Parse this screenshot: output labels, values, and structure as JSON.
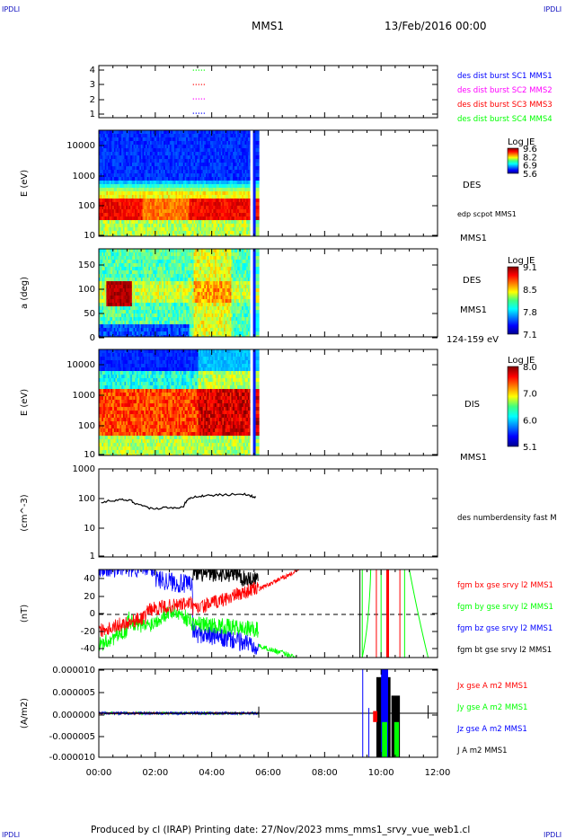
{
  "header": {
    "corner_tl": "IPDLI",
    "corner_tr": "IPDLI",
    "corner_bl": "IPDLI",
    "corner_br": "IPDLI",
    "spacecraft": "MMS1",
    "date": "13/Feb/2016 00:00"
  },
  "footer": {
    "text": "Produced by cl (IRAP)   Printing date: 27/Nov/2023   mms_mms1_srvy_vue_web1.cl"
  },
  "colors": {
    "blue": "#0000ff",
    "magenta": "#ff00ff",
    "red": "#ff0000",
    "green": "#00ff00",
    "black": "#000000"
  },
  "chart_data": [
    {
      "type": "scatter",
      "panel": "spacecraft-availability",
      "ylim": [
        0.5,
        4.5
      ],
      "yticks": [
        "1",
        "2",
        "3",
        "4"
      ],
      "legend_placement": "right",
      "series": [
        {
          "name": "des dist burst SC1 MMS1",
          "y": 1,
          "color": "#0000ff",
          "x_range": [
            "03:20",
            "03:45"
          ]
        },
        {
          "name": "des dist burst SC2 MMS2",
          "y": 2,
          "color": "#ff00ff",
          "x_range": [
            "03:20",
            "03:45"
          ]
        },
        {
          "name": "des dist burst SC3 MMS3",
          "y": 3,
          "color": "#ff0000",
          "x_range": [
            "03:20",
            "03:45"
          ]
        },
        {
          "name": "des dist burst SC4 MMS4",
          "y": 4,
          "color": "#00ff00",
          "x_range": [
            "03:20",
            "03:45"
          ]
        }
      ]
    },
    {
      "type": "heatmap",
      "panel": "des-energy-spectrogram",
      "ylabel": "E (eV)",
      "yscale": "log",
      "ylim": [
        10,
        30000
      ],
      "yticks": [
        "10",
        "100",
        "1000",
        "10000"
      ],
      "label": "DES",
      "overlay_label": "edp scpot MMS1",
      "footer_label": "MMS1",
      "colorbar": {
        "title": "Log JE",
        "ticks": [
          "9.6",
          "8.2",
          "6.9",
          "5.6"
        ],
        "range": [
          5.6,
          9.6
        ]
      },
      "data_end": "05:35"
    },
    {
      "type": "heatmap",
      "panel": "des-pitch-angle",
      "ylabel": "a (deg)",
      "ylim": [
        0,
        180
      ],
      "yticks": [
        "0",
        "50",
        "100",
        "150"
      ],
      "label": "DES",
      "label2": "MMS1",
      "footer_label": "124-159 eV",
      "colorbar": {
        "title": "Log JE",
        "ticks": [
          "9.1",
          "8.5",
          "7.8",
          "7.1"
        ],
        "range": [
          7.1,
          9.1
        ]
      },
      "data_end": "05:35"
    },
    {
      "type": "heatmap",
      "panel": "dis-energy-spectrogram",
      "ylabel": "E (eV)",
      "yscale": "log",
      "ylim": [
        10,
        30000
      ],
      "yticks": [
        "10",
        "100",
        "1000",
        "10000"
      ],
      "label": "DIS",
      "footer_label": "MMS1",
      "colorbar": {
        "title": "Log JE",
        "ticks": [
          "8.0",
          "7.0",
          "6.0",
          "5.1"
        ],
        "range": [
          5.1,
          8.0
        ]
      },
      "data_end": "05:35"
    },
    {
      "type": "line",
      "panel": "density",
      "ylabel": "(cm^-3)",
      "yscale": "log",
      "ylim": [
        1,
        1000
      ],
      "yticks": [
        "1",
        "10",
        "100",
        "1000"
      ],
      "series": [
        {
          "name": "des numberdensity fast M",
          "color": "#000000",
          "x": [
            "00:05",
            "00:20",
            "00:40",
            "00:55",
            "01:10",
            "01:20",
            "01:35",
            "01:50",
            "02:10",
            "02:30",
            "02:45",
            "03:00",
            "03:10",
            "03:20",
            "03:35",
            "03:50",
            "04:10",
            "04:30",
            "04:50",
            "05:10",
            "05:25",
            "05:35"
          ],
          "y": [
            75,
            80,
            85,
            90,
            80,
            65,
            55,
            45,
            45,
            50,
            45,
            55,
            90,
            110,
            120,
            120,
            130,
            130,
            140,
            135,
            120,
            110
          ]
        }
      ]
    },
    {
      "type": "line",
      "panel": "magnetic-field",
      "ylabel": "(nT)",
      "ylim": [
        -48,
        50
      ],
      "yticks": [
        "-40",
        "-20",
        "0",
        "20",
        "40"
      ],
      "zero_line": "dashed",
      "series": [
        {
          "name": "fgm bx gse srvy l2 MMS1",
          "color": "#ff0000"
        },
        {
          "name": "fgm by gse srvy l2 MMS1",
          "color": "#00ff00"
        },
        {
          "name": "fgm bz gse srvy l2 MMS1",
          "color": "#0000ff"
        },
        {
          "name": "fgm bt gse srvy l2 MMS1",
          "color": "#000000"
        }
      ]
    },
    {
      "type": "line",
      "panel": "current-density",
      "ylabel": "(A/m2)",
      "ylim": [
        -1e-05,
        1e-05
      ],
      "yticks": [
        "-0.000010",
        "-0.000005",
        "0.000000",
        "0.000005",
        "0.000010"
      ],
      "xticks": [
        "00:00",
        "02:00",
        "04:00",
        "06:00",
        "08:00",
        "10:00",
        "12:00"
      ],
      "series": [
        {
          "name": "Jx gse A m2 MMS1",
          "color": "#ff0000"
        },
        {
          "name": "Jy gse A m2 MMS1",
          "color": "#00ff00"
        },
        {
          "name": "Jz gse A m2 MMS1",
          "color": "#0000ff"
        },
        {
          "name": "J A m2 MMS1",
          "color": "#000000"
        }
      ]
    }
  ]
}
